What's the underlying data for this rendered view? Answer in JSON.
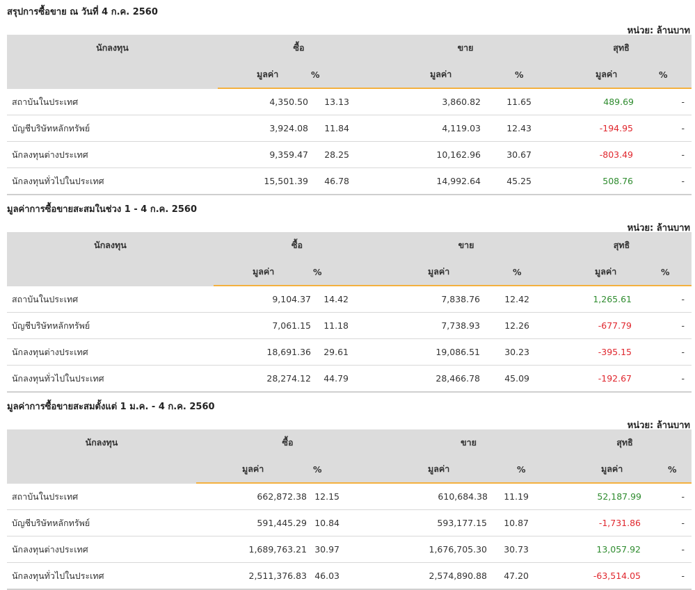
{
  "unit_label": "หน่วย: ล้านบาท",
  "headers": {
    "investor": "นักลงทุน",
    "buy": "ซื้อ",
    "sell": "ขาย",
    "net": "สุทธิ",
    "value": "มูลค่า",
    "percent": "%"
  },
  "colors": {
    "positive": "#2e8b2e",
    "negative": "#e0262d",
    "accent": "#f4b03e",
    "header_bg": "#dcdcdc"
  },
  "sections": [
    {
      "title": "สรุปการซื้อขาย ณ วันที่ 4 ก.ค. 2560",
      "rows": [
        {
          "investor": "สถาบันในประเทศ",
          "buy_value": "4,350.50",
          "buy_pct": "13.13",
          "sell_value": "3,860.82",
          "sell_pct": "11.65",
          "net_value": "489.69",
          "net_sign": "pos",
          "net_pct": "-"
        },
        {
          "investor": "บัญชีบริษัทหลักทรัพย์",
          "buy_value": "3,924.08",
          "buy_pct": "11.84",
          "sell_value": "4,119.03",
          "sell_pct": "12.43",
          "net_value": "-194.95",
          "net_sign": "neg",
          "net_pct": "-"
        },
        {
          "investor": "นักลงทุนต่างประเทศ",
          "buy_value": "9,359.47",
          "buy_pct": "28.25",
          "sell_value": "10,162.96",
          "sell_pct": "30.67",
          "net_value": "-803.49",
          "net_sign": "neg",
          "net_pct": "-"
        },
        {
          "investor": "นักลงทุนทั่วไปในประเทศ",
          "buy_value": "15,501.39",
          "buy_pct": "46.78",
          "sell_value": "14,992.64",
          "sell_pct": "45.25",
          "net_value": "508.76",
          "net_sign": "pos",
          "net_pct": "-"
        }
      ]
    },
    {
      "title": "มูลค่าการซื้อขายสะสมในช่วง 1 - 4 ก.ค. 2560",
      "rows": [
        {
          "investor": "สถาบันในประเทศ",
          "buy_value": "9,104.37",
          "buy_pct": "14.42",
          "sell_value": "7,838.76",
          "sell_pct": "12.42",
          "net_value": "1,265.61",
          "net_sign": "pos",
          "net_pct": "-"
        },
        {
          "investor": "บัญชีบริษัทหลักทรัพย์",
          "buy_value": "7,061.15",
          "buy_pct": "11.18",
          "sell_value": "7,738.93",
          "sell_pct": "12.26",
          "net_value": "-677.79",
          "net_sign": "neg",
          "net_pct": "-"
        },
        {
          "investor": "นักลงทุนต่างประเทศ",
          "buy_value": "18,691.36",
          "buy_pct": "29.61",
          "sell_value": "19,086.51",
          "sell_pct": "30.23",
          "net_value": "-395.15",
          "net_sign": "neg",
          "net_pct": "-"
        },
        {
          "investor": "นักลงทุนทั่วไปในประเทศ",
          "buy_value": "28,274.12",
          "buy_pct": "44.79",
          "sell_value": "28,466.78",
          "sell_pct": "45.09",
          "net_value": "-192.67",
          "net_sign": "neg",
          "net_pct": "-"
        }
      ]
    },
    {
      "title": "มูลค่าการซื้อขายสะสมตั้งแต่ 1 ม.ค. - 4 ก.ค. 2560",
      "rows": [
        {
          "investor": "สถาบันในประเทศ",
          "buy_value": "662,872.38",
          "buy_pct": "12.15",
          "sell_value": "610,684.38",
          "sell_pct": "11.19",
          "net_value": "52,187.99",
          "net_sign": "pos",
          "net_pct": "-"
        },
        {
          "investor": "บัญชีบริษัทหลักทรัพย์",
          "buy_value": "591,445.29",
          "buy_pct": "10.84",
          "sell_value": "593,177.15",
          "sell_pct": "10.87",
          "net_value": "-1,731.86",
          "net_sign": "neg",
          "net_pct": "-"
        },
        {
          "investor": "นักลงทุนต่างประเทศ",
          "buy_value": "1,689,763.21",
          "buy_pct": "30.97",
          "sell_value": "1,676,705.30",
          "sell_pct": "30.73",
          "net_value": "13,057.92",
          "net_sign": "pos",
          "net_pct": "-"
        },
        {
          "investor": "นักลงทุนทั่วไปในประเทศ",
          "buy_value": "2,511,376.83",
          "buy_pct": "46.03",
          "sell_value": "2,574,890.88",
          "sell_pct": "47.20",
          "net_value": "-63,514.05",
          "net_sign": "neg",
          "net_pct": "-"
        }
      ]
    }
  ]
}
